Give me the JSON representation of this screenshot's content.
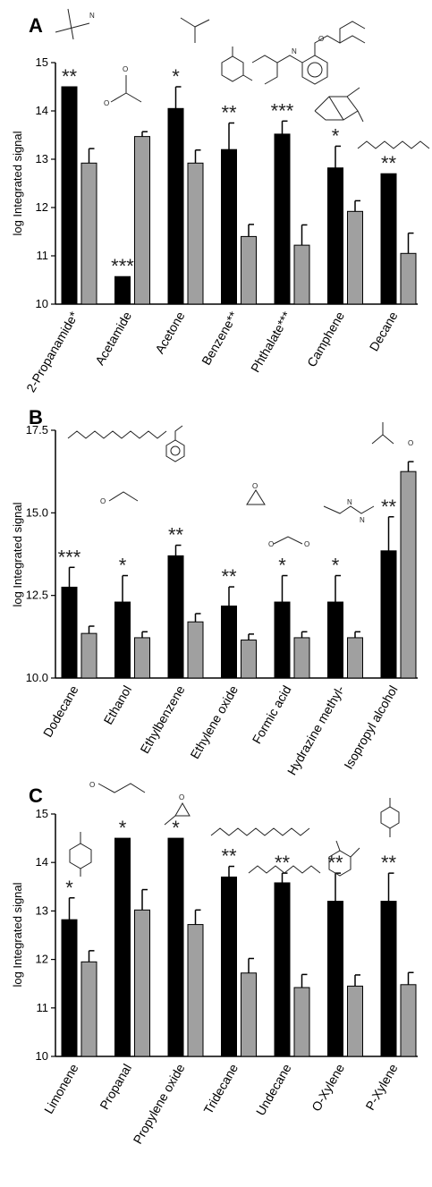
{
  "chart_data": [
    {
      "type": "bar",
      "panel": "A",
      "ylabel": "log Integrated signal",
      "ylim": [
        10,
        15
      ],
      "yticks": [
        "10",
        "11",
        "12",
        "13",
        "14",
        "15"
      ],
      "categories": [
        "2-Propanamide*",
        "Acetamide",
        "Acetone",
        "Benzene**",
        "Phthalate***",
        "Camphene",
        "Decane"
      ],
      "series": [
        {
          "color": "#000000",
          "values": [
            14.5,
            10.57,
            14.05,
            13.2,
            13.52,
            12.82,
            12.7
          ],
          "errors": [
            0,
            0,
            0.45,
            0.55,
            0.27,
            0.45,
            0
          ]
        },
        {
          "color": "#a0a0a0",
          "values": [
            12.92,
            13.47,
            12.92,
            11.4,
            11.22,
            11.92,
            11.05
          ],
          "errors": [
            0.3,
            0.1,
            0.27,
            0.25,
            0.42,
            0.22,
            0.42
          ]
        }
      ],
      "significance": [
        "**",
        "***",
        "*",
        "**",
        "***",
        "*",
        "**"
      ]
    },
    {
      "type": "bar",
      "panel": "B",
      "ylabel": "log Integrated signal",
      "ylim": [
        10,
        17.5
      ],
      "yticks": [
        "10.0",
        "12.5",
        "15.0",
        "17.5"
      ],
      "categories": [
        "Dodecane",
        "Ethanol",
        "Ethylbenzene",
        "Ethylene oxide",
        "Formic acid",
        "Hydrazine methyl-",
        "Isopropyl alcohol"
      ],
      "series": [
        {
          "color": "#000000",
          "values": [
            12.75,
            12.3,
            13.7,
            12.18,
            12.3,
            12.3,
            13.85
          ],
          "errors": [
            0.6,
            0.8,
            0.32,
            0.58,
            0.8,
            0.8,
            1.03
          ]
        },
        {
          "color": "#a0a0a0",
          "values": [
            11.35,
            11.22,
            11.7,
            11.15,
            11.22,
            11.22,
            16.25
          ],
          "errors": [
            0.22,
            0.18,
            0.25,
            0.18,
            0.18,
            0.18,
            0.3
          ]
        }
      ],
      "significance": [
        "***",
        "*",
        "**",
        "**",
        "*",
        "*",
        "**"
      ]
    },
    {
      "type": "bar",
      "panel": "C",
      "ylabel": "log Integrated signal",
      "ylim": [
        10,
        15
      ],
      "yticks": [
        "10",
        "11",
        "12",
        "13",
        "14",
        "15"
      ],
      "categories": [
        "Limonene",
        "Propanal",
        "Propylene oxide",
        "Tridecane",
        "Undecane",
        "O-Xylene",
        "P-Xylene"
      ],
      "series": [
        {
          "color": "#000000",
          "values": [
            12.82,
            14.5,
            14.5,
            13.7,
            13.58,
            13.2,
            13.2
          ],
          "errors": [
            0.45,
            0,
            0,
            0.22,
            0.2,
            0.58,
            0.58
          ]
        },
        {
          "color": "#a0a0a0",
          "values": [
            11.95,
            13.02,
            12.72,
            11.72,
            11.42,
            11.45,
            11.48
          ],
          "errors": [
            0.23,
            0.42,
            0.3,
            0.3,
            0.27,
            0.23,
            0.25
          ]
        }
      ],
      "significance": [
        "*",
        "*",
        "*",
        "**",
        "**",
        "**",
        "**"
      ]
    }
  ],
  "panel_letters": [
    "A",
    "B",
    "C"
  ],
  "molecule_labels": [
    "N",
    "O",
    "O",
    "N",
    "O",
    "O",
    "O",
    "O",
    "O",
    "O",
    "O",
    "N",
    "N",
    "O"
  ]
}
